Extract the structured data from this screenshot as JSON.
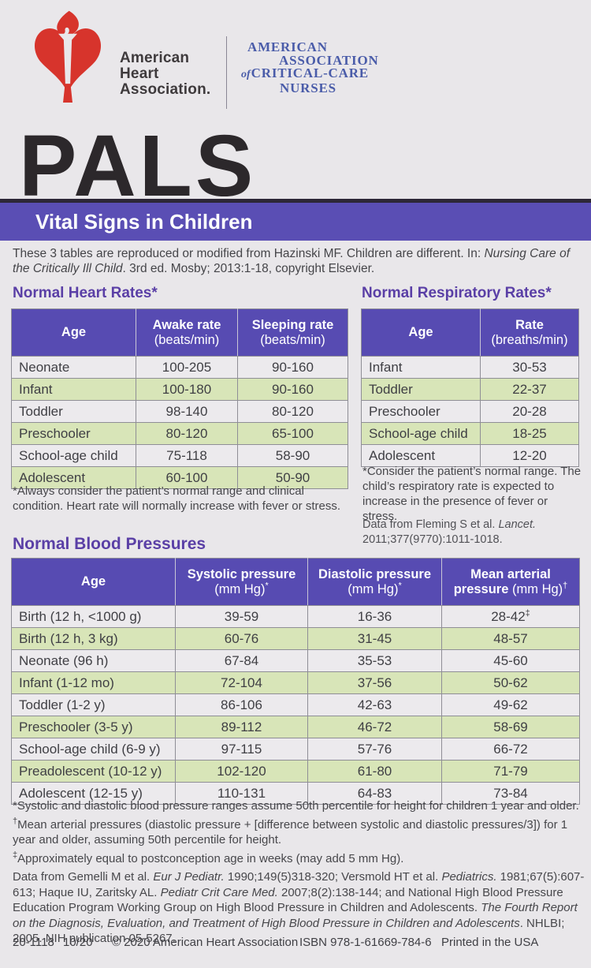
{
  "colors": {
    "banner_purple": "#5a4eb4",
    "banner_top_stripe": "#2d2737",
    "table_header_purple": "#574bb2",
    "row_green": "#d8e5b8",
    "row_light": "#eceaed",
    "heading_purple": "#5a3fa6",
    "aha_red": "#d7342c",
    "aacn_blue": "#4a5ca9",
    "page_background": "#e9e7ea"
  },
  "header": {
    "aha": {
      "line1": "American",
      "line2": "Heart",
      "line3": "Association."
    },
    "aacn": {
      "line1": "AMERICAN",
      "line2": "ASSOCIATION",
      "line3_of": "of",
      "line3": "CRITICAL-CARE",
      "line4": "NURSES"
    },
    "title": "PALS",
    "banner": "Vital Signs in Children"
  },
  "intro_rich": [
    {
      "t": "These 3 tables are reproduced or modified from Hazinski MF. Children are different. In: "
    },
    {
      "t": "Nursing Care of the Critically Ill Child",
      "i": 1
    },
    {
      "t": ". 3rd ed. Mosby; 2013:1-18, copyright Elsevier."
    }
  ],
  "heart_table": {
    "title": "Normal Heart Rates*",
    "headers": [
      {
        "t": "Age",
        "s": ""
      },
      {
        "t": "Awake rate",
        "s": "(beats/min)"
      },
      {
        "t": "Sleeping rate",
        "s": "(beats/min)"
      }
    ],
    "rows": [
      [
        "Neonate",
        "100-205",
        "90-160"
      ],
      [
        "Infant",
        "100-180",
        "90-160"
      ],
      [
        "Toddler",
        "98-140",
        "80-120"
      ],
      [
        "Preschooler",
        "80-120",
        "65-100"
      ],
      [
        "School-age child",
        "75-118",
        "58-90"
      ],
      [
        "Adolescent",
        "60-100",
        "50-90"
      ]
    ],
    "footnote": "*Always consider the patient’s normal range and clinical condition. Heart rate will normally increase with fever or stress."
  },
  "resp_table": {
    "title": "Normal Respiratory Rates*",
    "headers": [
      {
        "t": "Age",
        "s": ""
      },
      {
        "t": "Rate",
        "s": "(breaths/min)"
      }
    ],
    "rows": [
      [
        "Infant",
        "30-53"
      ],
      [
        "Toddler",
        "22-37"
      ],
      [
        "Preschooler",
        "20-28"
      ],
      [
        "School-age child",
        "18-25"
      ],
      [
        "Adolescent",
        "12-20"
      ]
    ],
    "footnote": "*Consider the patient’s normal range. The child’s respiratory rate is expected to increase in the presence of fever or stress.",
    "source_rich": [
      {
        "t": "Data from Fleming S et al. "
      },
      {
        "t": "Lancet.",
        "i": 1
      },
      {
        "t": " 2011;377(9770):1011-1018."
      }
    ]
  },
  "bp_table": {
    "title": "Normal Blood Pressures",
    "headers": [
      {
        "t": "Age",
        "s": ""
      },
      {
        "t": "Systolic pressure",
        "s": "(mm Hg)*"
      },
      {
        "t": "Diastolic pressure",
        "s": "(mm Hg)*"
      },
      {
        "t": "Mean arterial pressure",
        "s": "(mm Hg)†"
      }
    ],
    "rows": [
      [
        "Birth (12 h, <1000 g)",
        "39-59",
        "16-36",
        "28-42‡"
      ],
      [
        "Birth (12 h, 3 kg)",
        "60-76",
        "31-45",
        "48-57"
      ],
      [
        "Neonate (96 h)",
        "67-84",
        "35-53",
        "45-60"
      ],
      [
        "Infant (1-12 mo)",
        "72-104",
        "37-56",
        "50-62"
      ],
      [
        "Toddler (1-2 y)",
        "86-106",
        "42-63",
        "49-62"
      ],
      [
        "Preschooler (3-5 y)",
        "89-112",
        "46-72",
        "58-69"
      ],
      [
        "School-age child (6-9 y)",
        "97-115",
        "57-76",
        "66-72"
      ],
      [
        "Preadolescent (10-12 y)",
        "102-120",
        "61-80",
        "71-79"
      ],
      [
        "Adolescent (12-15 y)",
        "110-131",
        "64-83",
        "73-84"
      ]
    ],
    "footnote1_rich": [
      {
        "t": "*Systolic and diastolic blood pressure ranges assume 50th percentile for height for children 1 year and older."
      }
    ],
    "footnote2_rich": [
      {
        "t": "†",
        "sup": 1
      },
      {
        "t": "Mean arterial pressures (diastolic pressure + [difference between systolic and diastolic pressures/3]) for 1 year and older, assuming 50th percentile for height."
      }
    ],
    "footnote3_rich": [
      {
        "t": "‡",
        "sup": 1
      },
      {
        "t": "Approximately equal to postconception age in weeks (may add 5 mm Hg)."
      }
    ],
    "source_rich": [
      {
        "t": "Data from Gemelli M et al. "
      },
      {
        "t": "Eur J Pediatr.",
        "i": 1
      },
      {
        "t": " 1990;149(5)318-320; Versmold HT et al. "
      },
      {
        "t": "Pediatrics.",
        "i": 1
      },
      {
        "t": " 1981;67(5):607-613; Haque IU, Zaritsky AL. "
      },
      {
        "t": "Pediatr Crit Care Med.",
        "i": 1
      },
      {
        "t": " 2007;8(2):138-144; and National High Blood Pressure Education Program Working Group on High Blood Pressure in Children and Adolescents. "
      },
      {
        "t": "The Fourth Report on the Diagnosis, Evaluation, and Treatment of High Blood Pressure in Children and Adolescents",
        "i": 1
      },
      {
        "t": ". NHLBI; 2005. NIH publication 05-5267."
      }
    ]
  },
  "footer": {
    "code": "20-1118",
    "date": "10/20",
    "copyright": "© 2020 American Heart Association",
    "isbn": "ISBN 978-1-61669-784-6",
    "printed": "Printed in the USA"
  }
}
